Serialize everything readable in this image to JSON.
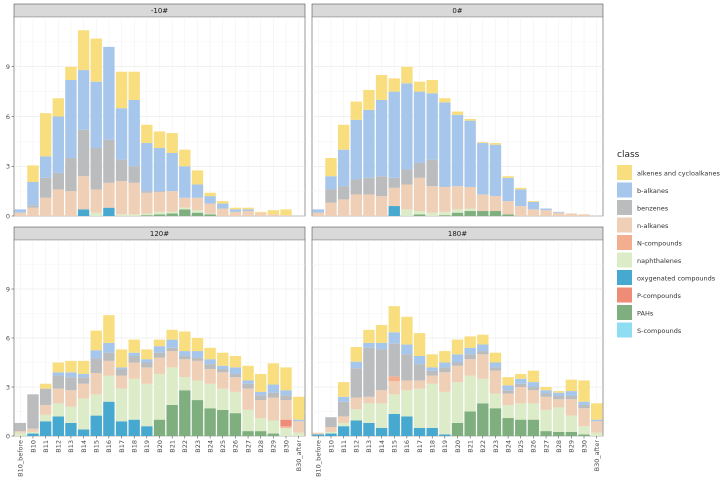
{
  "chart_data": {
    "type": "bar",
    "stacked": true,
    "layout": "facet-grid 2x2, shared y axis",
    "yticks": [
      0,
      3,
      6,
      9
    ],
    "ylim": [
      0,
      12
    ],
    "legend": {
      "title": "class",
      "position": "right",
      "entries": [
        {
          "name": "alkenes and cycloalkanes",
          "color": "#F8DE7E"
        },
        {
          "name": "b-alkanes",
          "color": "#A6C6EC"
        },
        {
          "name": "benzenes",
          "color": "#BBBCBE"
        },
        {
          "name": "n-alkanes",
          "color": "#EFCFB5"
        },
        {
          "name": "N-compounds",
          "color": "#F3AE8F"
        },
        {
          "name": "naphthalenes",
          "color": "#DCEBC8"
        },
        {
          "name": "oxygenated compounds",
          "color": "#47A9D0"
        },
        {
          "name": "P-compounds",
          "color": "#EE8C78"
        },
        {
          "name": "PAHs",
          "color": "#7FAF7F"
        },
        {
          "name": "S-compounds",
          "color": "#8FDDF2"
        }
      ]
    },
    "panels": [
      {
        "title": "-10#",
        "categories": [
          "B10_before",
          "B10",
          "B11",
          "B12",
          "B13",
          "B14",
          "B15",
          "B16",
          "B17",
          "B18",
          "B19",
          "B20",
          "B21",
          "B22",
          "B23",
          "B24",
          "B25",
          "B26",
          "B27",
          "B28",
          "B29",
          "B30",
          "B30_after"
        ],
        "series": [
          {
            "name": "oxygenated compounds",
            "values": [
              0,
              0,
              0,
              0,
              0,
              0.4,
              0,
              0.5,
              0,
              0,
              0,
              0,
              0,
              0,
              0,
              0,
              0,
              0,
              0,
              0,
              0,
              0,
              0
            ]
          },
          {
            "name": "PAHs",
            "values": [
              0,
              0,
              0,
              0,
              0,
              0,
              0,
              0,
              0,
              0,
              0.05,
              0.1,
              0.15,
              0.4,
              0.2,
              0.1,
              0,
              0,
              0,
              0,
              0,
              0,
              0
            ]
          },
          {
            "name": "naphthalenes",
            "values": [
              0,
              0,
              0,
              0,
              0,
              0,
              0.2,
              0,
              0.1,
              0.1,
              0.1,
              0.15,
              0.1,
              0.1,
              0.15,
              0.05,
              0,
              0,
              0,
              0,
              0,
              0,
              0
            ]
          },
          {
            "name": "n-alkanes",
            "values": [
              0.2,
              0.5,
              1.1,
              1.6,
              1.5,
              2.0,
              1.4,
              1.5,
              2.0,
              1.9,
              1.25,
              1.2,
              1.25,
              0.6,
              0.75,
              0.6,
              0.45,
              0.25,
              0.3,
              0.2,
              0.1,
              0.05,
              0
            ]
          },
          {
            "name": "benzenes",
            "values": [
              0,
              0.15,
              1.2,
              1.0,
              2.0,
              2.8,
              2.5,
              2.6,
              1.3,
              1.0,
              0.1,
              0.05,
              0,
              0,
              0,
              0,
              0,
              0,
              0,
              0,
              0,
              0,
              0
            ]
          },
          {
            "name": "b-alkanes",
            "values": [
              0.2,
              1.4,
              1.3,
              3.4,
              4.7,
              3.6,
              4.0,
              5.6,
              3.1,
              4.0,
              2.9,
              2.6,
              2.3,
              1.9,
              0.8,
              0.45,
              0.3,
              0.15,
              0.1,
              0,
              0,
              0,
              0
            ]
          },
          {
            "name": "alkenes and cycloalkanes",
            "values": [
              0,
              1.0,
              2.6,
              1.1,
              0.8,
              2.4,
              2.6,
              0,
              2.2,
              1.7,
              1.1,
              1.0,
              1.2,
              1.0,
              0.85,
              0.2,
              0.15,
              0.1,
              0.1,
              0.05,
              0.25,
              0.35,
              0
            ]
          }
        ]
      },
      {
        "title": "0#",
        "categories": [
          "B10_before",
          "B10",
          "B11",
          "B12",
          "B13",
          "B14",
          "B15",
          "B16",
          "B17",
          "B18",
          "B19",
          "B20",
          "B21",
          "B22",
          "B23",
          "B24",
          "B25",
          "B26",
          "B27",
          "B28",
          "B29",
          "B30",
          "B30_after"
        ],
        "series": [
          {
            "name": "oxygenated compounds",
            "values": [
              0,
              0,
              0,
              0,
              0,
              0,
              0.6,
              0,
              0,
              0,
              0,
              0,
              0,
              0,
              0,
              0,
              0,
              0,
              0,
              0,
              0,
              0,
              0
            ]
          },
          {
            "name": "PAHs",
            "values": [
              0,
              0,
              0,
              0,
              0,
              0,
              0,
              0,
              0.1,
              0,
              0.05,
              0.2,
              0.3,
              0.3,
              0.3,
              0.1,
              0,
              0,
              0,
              0,
              0,
              0,
              0
            ]
          },
          {
            "name": "naphthalenes",
            "values": [
              0,
              0,
              0,
              0,
              0,
              0,
              0,
              0.4,
              0.2,
              0.2,
              0.2,
              0.2,
              0.15,
              0,
              0,
              0,
              0,
              0,
              0,
              0,
              0,
              0,
              0
            ]
          },
          {
            "name": "n-alkanes",
            "values": [
              0.2,
              0.8,
              1.0,
              1.3,
              1.3,
              1.2,
              1.1,
              1.5,
              2.0,
              1.6,
              1.5,
              1.4,
              1.3,
              1.0,
              0.9,
              0.8,
              0.6,
              0.4,
              0.35,
              0.2,
              0.15,
              0.1,
              0
            ]
          },
          {
            "name": "benzenes",
            "values": [
              0,
              0.8,
              0.8,
              0.9,
              1.0,
              1.2,
              0.6,
              0.9,
              0.9,
              1.6,
              0,
              0,
              0,
              0,
              0,
              0,
              0,
              0,
              0,
              0,
              0,
              0,
              0
            ]
          },
          {
            "name": "b-alkanes",
            "values": [
              0.2,
              0.8,
              2.2,
              3.6,
              4.1,
              4.6,
              5.2,
              5.2,
              4.3,
              4.0,
              5.1,
              4.3,
              4.0,
              3.1,
              3.1,
              1.4,
              1.0,
              0.45,
              0.1,
              0.05,
              0,
              0,
              0
            ]
          },
          {
            "name": "alkenes and cycloalkanes",
            "values": [
              0,
              1.1,
              1.5,
              1.1,
              1.2,
              1.5,
              0.8,
              1.0,
              0.6,
              0.8,
              0.25,
              0.2,
              0.1,
              0.05,
              0.1,
              0.1,
              0.1,
              0.05,
              0,
              0,
              0,
              0,
              0
            ]
          }
        ]
      },
      {
        "title": "120#",
        "categories": [
          "B10_before",
          "B10",
          "B11",
          "B12",
          "B13",
          "B14",
          "B15",
          "B16",
          "B17",
          "B18",
          "B19",
          "B20",
          "B21",
          "B22",
          "B23",
          "B24",
          "B25",
          "B26",
          "B27",
          "B28",
          "B29",
          "B30",
          "B30_after"
        ],
        "series": [
          {
            "name": "oxygenated compounds",
            "values": [
              0,
              0.15,
              0.9,
              1.2,
              0.8,
              0.4,
              1.25,
              2.1,
              0.9,
              1.0,
              0.6,
              0,
              0,
              0,
              0,
              0,
              0,
              0,
              0,
              0,
              0,
              0,
              0
            ]
          },
          {
            "name": "PAHs",
            "values": [
              0,
              0,
              0,
              0,
              0,
              0,
              0,
              0,
              0,
              0,
              0,
              1.0,
              1.9,
              2.8,
              2.2,
              1.7,
              1.6,
              1.4,
              0.3,
              0.3,
              0.15,
              0,
              0
            ]
          },
          {
            "name": "naphthalenes",
            "values": [
              0.2,
              0.1,
              0.4,
              0.8,
              1.0,
              1.9,
              1.3,
              1.6,
              2.0,
              2.5,
              2.6,
              2.8,
              2.3,
              0.8,
              1.2,
              1.5,
              1.3,
              1.3,
              1.3,
              0.8,
              0.8,
              0.5,
              0.2
            ]
          },
          {
            "name": "N-compounds",
            "values": [
              0,
              0,
              0,
              0,
              0,
              0,
              0,
              0,
              0,
              0,
              0,
              0,
              0,
              0,
              0,
              0,
              0,
              0,
              0,
              0,
              0,
              0.1,
              0
            ]
          },
          {
            "name": "P-compounds",
            "values": [
              0,
              0,
              0,
              0,
              0,
              0,
              0,
              0,
              0,
              0,
              0,
              0,
              0,
              0,
              0,
              0,
              0,
              0,
              0,
              0,
              0,
              0.4,
              0
            ]
          },
          {
            "name": "n-alkanes",
            "values": [
              0.1,
              0.2,
              0.6,
              0.9,
              1.0,
              0.9,
              1.3,
              0.9,
              0.8,
              1.0,
              1.0,
              1.0,
              1.0,
              1.1,
              1.2,
              0.9,
              1.0,
              0.9,
              1.3,
              1.1,
              1.4,
              1.2,
              0.7
            ]
          },
          {
            "name": "benzenes",
            "values": [
              0.5,
              2.1,
              1.0,
              0.8,
              0.8,
              0.4,
              0.9,
              0.5,
              0.4,
              0.4,
              0.3,
              0.3,
              0.2,
              0.2,
              0.2,
              0.3,
              0.2,
              0.2,
              0.3,
              0.3,
              0.3,
              0.3,
              0
            ]
          },
          {
            "name": "b-alkanes",
            "values": [
              0,
              0,
              0,
              0.2,
              0.3,
              0.2,
              0.5,
              0.6,
              0.1,
              0.2,
              0.2,
              0.4,
              0.5,
              0.3,
              0.4,
              0.3,
              0.2,
              0.4,
              0.2,
              0.2,
              0.5,
              0.3,
              0.1
            ]
          },
          {
            "name": "alkenes and cycloalkanes",
            "values": [
              0,
              0,
              0.3,
              0.6,
              0.7,
              0.8,
              1.2,
              1.7,
              1.1,
              0.8,
              0.6,
              0.4,
              0.6,
              1.2,
              0.8,
              0.7,
              0.8,
              0.7,
              0.9,
              1.1,
              1.3,
              1.4,
              1.4
            ]
          }
        ]
      },
      {
        "title": "180#",
        "categories": [
          "B10_before",
          "B10",
          "B11",
          "B12",
          "B13",
          "B14",
          "B15",
          "B16",
          "B17",
          "B18",
          "B19",
          "B20",
          "B21",
          "B22",
          "B23",
          "B24",
          "B25",
          "B26",
          "B27",
          "B28",
          "B29",
          "B30",
          "B30_after"
        ],
        "series": [
          {
            "name": "oxygenated compounds",
            "values": [
              0.1,
              0.15,
              0.6,
              0.95,
              0.8,
              0.5,
              1.35,
              1.2,
              0.5,
              0.5,
              0.1,
              0,
              0,
              0,
              0,
              0,
              0,
              0,
              0,
              0,
              0,
              0,
              0
            ]
          },
          {
            "name": "PAHs",
            "values": [
              0,
              0,
              0,
              0,
              0,
              0,
              0,
              0,
              0,
              0,
              0,
              0.8,
              1.5,
              2.0,
              1.7,
              1.1,
              1.0,
              1.0,
              0.3,
              0.25,
              0.25,
              0.1,
              0
            ]
          },
          {
            "name": "naphthalenes",
            "values": [
              0,
              0.1,
              0.2,
              0.7,
              1.2,
              1.5,
              1.2,
              1.6,
              2.4,
              2.7,
              2.6,
              2.5,
              2.2,
              1.5,
              0.9,
              0.8,
              1.0,
              1.0,
              1.3,
              1.5,
              1.0,
              0.5,
              0.2
            ]
          },
          {
            "name": "n-alkanes",
            "values": [
              0.1,
              0.3,
              0.4,
              0.7,
              0.4,
              0.8,
              0.8,
              0.6,
              0.5,
              0.5,
              1.2,
              1.0,
              1.0,
              1.5,
              1.4,
              0.7,
              1.0,
              0.8,
              0.8,
              0.5,
              1.0,
              1.1,
              0.7
            ]
          },
          {
            "name": "N-compounds",
            "values": [
              0,
              0,
              0,
              0,
              0,
              0,
              0.3,
              0,
              0,
              0,
              0,
              0,
              0,
              0,
              0,
              0,
              0,
              0,
              0,
              0,
              0,
              0,
              0
            ]
          },
          {
            "name": "benzenes",
            "values": [
              0,
              0.6,
              0.9,
              1.8,
              3.0,
              2.5,
              2.0,
              1.6,
              1.0,
              0.3,
              0.3,
              0.2,
              0.3,
              0.2,
              0.2,
              0.2,
              0.2,
              0.2,
              0.2,
              0.2,
              0.2,
              0.2,
              0
            ]
          },
          {
            "name": "b-alkanes",
            "values": [
              0,
              0,
              0.3,
              0.4,
              0.3,
              0.4,
              0.7,
              0.6,
              0.5,
              0.2,
              0.3,
              0.5,
              0.4,
              0.4,
              0.3,
              0.3,
              0.3,
              0.3,
              0.2,
              0.2,
              0.3,
              0.2,
              0.1
            ]
          },
          {
            "name": "alkenes and cycloalkanes",
            "values": [
              0,
              0,
              0.9,
              0.9,
              0.8,
              1.1,
              1.6,
              1.7,
              1.4,
              0.8,
              0.7,
              0.9,
              0.7,
              0.6,
              0.6,
              0.5,
              0.3,
              0.7,
              0.2,
              0.1,
              0.7,
              1.3,
              1.0
            ]
          }
        ]
      }
    ]
  }
}
